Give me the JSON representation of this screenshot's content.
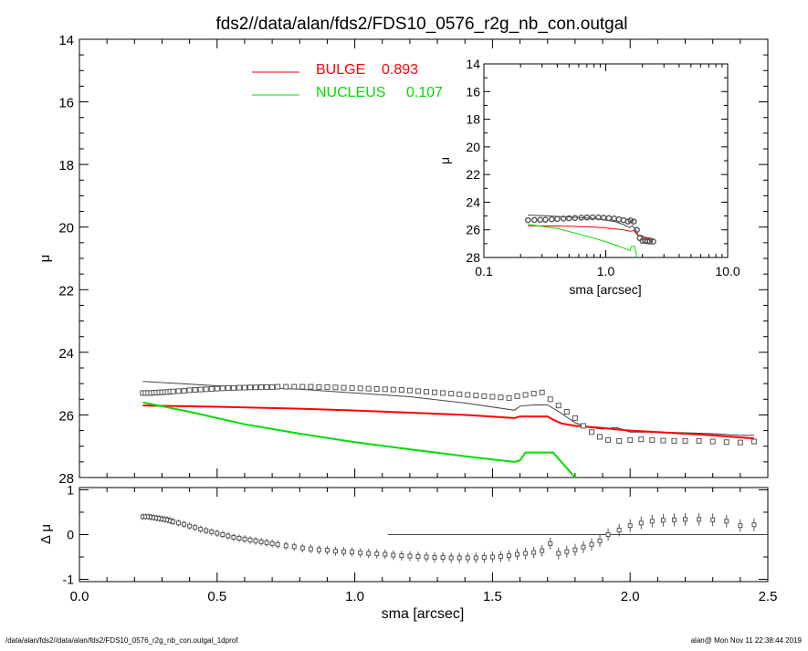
{
  "title": "fds2//data/alan/fds2/FDS10_0576_r2g_nb_con.outgal",
  "footer": {
    "left": "/data/alan/fds2//data/alan/fds2/FDS10_0576_r2g_nb_con.outgal_1dprof",
    "right": "alan@  Mon Nov 11 22:38:44 2019"
  },
  "legend": [
    {
      "name": "BULGE",
      "value": "0.893",
      "color": "#ff0000"
    },
    {
      "name": "NUCLEUS",
      "value": "0.107",
      "color": "#00dd00"
    }
  ],
  "colors": {
    "data": "#555555",
    "model": "#444444",
    "bulge": "#ff0000",
    "nucleus": "#00dd00"
  },
  "chart_data": [
    {
      "type": "line",
      "panel": "main",
      "xlabel": "sma [arcsec]",
      "ylabel": "μ",
      "xlim": [
        0,
        2.5
      ],
      "ylim": [
        28,
        14
      ],
      "x_ticks": [
        "0.0",
        "0.5",
        "1.0",
        "1.5",
        "2.0",
        "2.5"
      ],
      "y_ticks": [
        "14",
        "16",
        "18",
        "20",
        "22",
        "24",
        "26",
        "28"
      ],
      "data_points": {
        "x": [
          0.23,
          0.24,
          0.25,
          0.26,
          0.27,
          0.28,
          0.29,
          0.3,
          0.31,
          0.32,
          0.33,
          0.34,
          0.36,
          0.38,
          0.4,
          0.42,
          0.44,
          0.46,
          0.48,
          0.5,
          0.52,
          0.54,
          0.56,
          0.58,
          0.6,
          0.62,
          0.64,
          0.66,
          0.68,
          0.7,
          0.72,
          0.75,
          0.78,
          0.81,
          0.84,
          0.87,
          0.9,
          0.93,
          0.96,
          0.99,
          1.02,
          1.05,
          1.08,
          1.11,
          1.14,
          1.17,
          1.2,
          1.23,
          1.26,
          1.29,
          1.32,
          1.35,
          1.38,
          1.41,
          1.44,
          1.47,
          1.5,
          1.53,
          1.56,
          1.59,
          1.62,
          1.65,
          1.68,
          1.71,
          1.74,
          1.77,
          1.8,
          1.83,
          1.86,
          1.89,
          1.92,
          1.96,
          2.0,
          2.04,
          2.08,
          2.12,
          2.16,
          2.2,
          2.25,
          2.3,
          2.35,
          2.4,
          2.45
        ],
        "y": [
          25.3,
          25.3,
          25.3,
          25.3,
          25.29,
          25.29,
          25.28,
          25.28,
          25.27,
          25.27,
          25.26,
          25.25,
          25.24,
          25.23,
          25.21,
          25.2,
          25.19,
          25.18,
          25.17,
          25.16,
          25.15,
          25.14,
          25.14,
          25.13,
          25.13,
          25.12,
          25.12,
          25.11,
          25.11,
          25.11,
          25.1,
          25.1,
          25.1,
          25.1,
          25.1,
          25.11,
          25.11,
          25.12,
          25.13,
          25.14,
          25.15,
          25.16,
          25.17,
          25.18,
          25.19,
          25.2,
          25.22,
          25.24,
          25.26,
          25.28,
          25.3,
          25.32,
          25.34,
          25.36,
          25.38,
          25.4,
          25.42,
          25.44,
          25.46,
          25.4,
          25.36,
          25.32,
          25.28,
          25.5,
          25.7,
          25.9,
          26.1,
          26.35,
          26.55,
          26.7,
          26.8,
          26.83,
          26.8,
          26.78,
          26.8,
          26.82,
          26.83,
          26.83,
          26.83,
          26.85,
          26.87,
          26.88,
          26.85
        ]
      },
      "series": [
        {
          "name": "model",
          "x": [
            0.23,
            0.5,
            0.8,
            1.0,
            1.2,
            1.4,
            1.58,
            1.6,
            1.65,
            1.7,
            1.75,
            1.8,
            1.85,
            1.9,
            1.95,
            2.0,
            2.1,
            2.2,
            2.3,
            2.4,
            2.45
          ],
          "y": [
            24.93,
            25.07,
            25.18,
            25.3,
            25.42,
            25.62,
            25.85,
            25.72,
            25.68,
            25.68,
            25.95,
            26.25,
            26.4,
            26.45,
            26.4,
            26.55,
            26.55,
            26.57,
            26.6,
            26.65,
            26.65
          ]
        },
        {
          "name": "BULGE",
          "x": [
            0.23,
            0.5,
            0.8,
            1.0,
            1.2,
            1.4,
            1.58,
            1.6,
            1.62,
            1.7,
            1.72,
            1.75,
            1.8,
            1.9,
            2.0,
            2.1,
            2.2,
            2.3,
            2.4,
            2.45
          ],
          "y": [
            25.7,
            25.74,
            25.8,
            25.86,
            25.93,
            26.0,
            26.1,
            26.05,
            26.05,
            26.05,
            26.15,
            26.27,
            26.35,
            26.42,
            26.5,
            26.55,
            26.6,
            26.65,
            26.72,
            26.75
          ]
        },
        {
          "name": "NUCLEUS",
          "x": [
            0.23,
            0.4,
            0.6,
            0.8,
            1.0,
            1.2,
            1.4,
            1.58,
            1.6,
            1.62,
            1.7,
            1.72,
            1.76,
            1.8
          ],
          "y": [
            25.6,
            25.9,
            26.3,
            26.6,
            26.87,
            27.1,
            27.32,
            27.5,
            27.45,
            27.2,
            27.2,
            27.2,
            27.6,
            28.0
          ]
        }
      ]
    },
    {
      "type": "line",
      "panel": "inset",
      "xlabel": "sma [arcsec]",
      "ylabel": "μ",
      "xscale": "log",
      "xlim": [
        0.1,
        10.0
      ],
      "ylim": [
        28,
        14
      ],
      "x_ticks": [
        "0.1",
        "1.0",
        "10.0"
      ],
      "y_ticks": [
        "14",
        "16",
        "18",
        "20",
        "22",
        "24",
        "26",
        "28"
      ],
      "data_points": {
        "x": [
          0.23,
          0.26,
          0.29,
          0.32,
          0.36,
          0.4,
          0.45,
          0.5,
          0.56,
          0.63,
          0.7,
          0.78,
          0.87,
          0.96,
          1.06,
          1.17,
          1.28,
          1.4,
          1.52,
          1.6,
          1.7,
          1.8,
          1.9,
          2.0,
          2.1,
          2.2,
          2.3,
          2.45
        ],
        "y": [
          25.3,
          25.29,
          25.28,
          25.27,
          25.24,
          25.21,
          25.19,
          25.16,
          25.14,
          25.12,
          25.11,
          25.1,
          25.1,
          25.12,
          25.15,
          25.18,
          25.24,
          25.3,
          25.4,
          25.32,
          25.4,
          26.0,
          26.6,
          26.8,
          26.8,
          26.83,
          26.85,
          26.85
        ]
      },
      "series": [
        {
          "name": "model",
          "x": [
            0.23,
            0.5,
            0.8,
            1.0,
            1.2,
            1.4,
            1.58,
            1.65,
            1.75,
            1.85,
            1.95,
            2.1,
            2.3,
            2.45
          ],
          "y": [
            24.93,
            25.07,
            25.18,
            25.3,
            25.42,
            25.62,
            25.85,
            25.68,
            25.95,
            26.4,
            26.4,
            26.55,
            26.6,
            26.65
          ]
        },
        {
          "name": "BULGE",
          "x": [
            0.23,
            0.5,
            0.8,
            1.0,
            1.2,
            1.4,
            1.58,
            1.7,
            1.8,
            2.0,
            2.2,
            2.45
          ],
          "y": [
            25.7,
            25.74,
            25.8,
            25.86,
            25.93,
            26.0,
            26.1,
            26.05,
            26.35,
            26.5,
            26.6,
            26.75
          ]
        },
        {
          "name": "NUCLEUS",
          "x": [
            0.23,
            0.4,
            0.6,
            0.8,
            1.0,
            1.2,
            1.4,
            1.58,
            1.62,
            1.72,
            1.76,
            1.8
          ],
          "y": [
            25.6,
            25.9,
            26.3,
            26.6,
            26.87,
            27.1,
            27.32,
            27.5,
            27.2,
            27.2,
            27.6,
            28.3
          ]
        }
      ]
    },
    {
      "type": "scatter",
      "panel": "residual",
      "xlabel": "sma [arcsec]",
      "ylabel": "Δ μ",
      "xlim": [
        0,
        2.5
      ],
      "ylim": [
        -1,
        1
      ],
      "x_ticks": [
        "0.0",
        "0.5",
        "1.0",
        "1.5",
        "2.0",
        "2.5"
      ],
      "y_ticks": [
        "-1",
        "0",
        "1"
      ],
      "zero_line": [
        1.12,
        2.5
      ],
      "points": {
        "x": [
          0.23,
          0.24,
          0.25,
          0.26,
          0.27,
          0.28,
          0.29,
          0.3,
          0.31,
          0.32,
          0.33,
          0.34,
          0.36,
          0.38,
          0.4,
          0.42,
          0.44,
          0.46,
          0.48,
          0.5,
          0.52,
          0.54,
          0.56,
          0.58,
          0.6,
          0.62,
          0.64,
          0.66,
          0.68,
          0.7,
          0.72,
          0.75,
          0.78,
          0.81,
          0.84,
          0.87,
          0.9,
          0.93,
          0.96,
          0.99,
          1.02,
          1.05,
          1.08,
          1.11,
          1.14,
          1.17,
          1.2,
          1.23,
          1.26,
          1.29,
          1.32,
          1.35,
          1.38,
          1.41,
          1.44,
          1.47,
          1.5,
          1.53,
          1.56,
          1.59,
          1.62,
          1.65,
          1.68,
          1.71,
          1.74,
          1.77,
          1.8,
          1.83,
          1.86,
          1.89,
          1.92,
          1.96,
          2.0,
          2.04,
          2.08,
          2.12,
          2.16,
          2.2,
          2.25,
          2.3,
          2.35,
          2.4,
          2.45
        ],
        "y": [
          0.4,
          0.4,
          0.4,
          0.39,
          0.38,
          0.37,
          0.36,
          0.35,
          0.34,
          0.33,
          0.31,
          0.29,
          0.26,
          0.23,
          0.19,
          0.16,
          0.12,
          0.09,
          0.06,
          0.03,
          0.0,
          -0.03,
          -0.06,
          -0.08,
          -0.1,
          -0.12,
          -0.14,
          -0.16,
          -0.18,
          -0.2,
          -0.22,
          -0.25,
          -0.27,
          -0.3,
          -0.32,
          -0.34,
          -0.35,
          -0.37,
          -0.38,
          -0.39,
          -0.41,
          -0.42,
          -0.43,
          -0.44,
          -0.46,
          -0.47,
          -0.48,
          -0.49,
          -0.5,
          -0.51,
          -0.51,
          -0.52,
          -0.52,
          -0.52,
          -0.52,
          -0.51,
          -0.5,
          -0.49,
          -0.47,
          -0.44,
          -0.42,
          -0.4,
          -0.36,
          -0.2,
          -0.42,
          -0.38,
          -0.34,
          -0.28,
          -0.22,
          -0.14,
          0.0,
          0.1,
          0.2,
          0.26,
          0.3,
          0.32,
          0.33,
          0.34,
          0.34,
          0.33,
          0.3,
          0.2,
          0.22
        ]
      }
    }
  ]
}
